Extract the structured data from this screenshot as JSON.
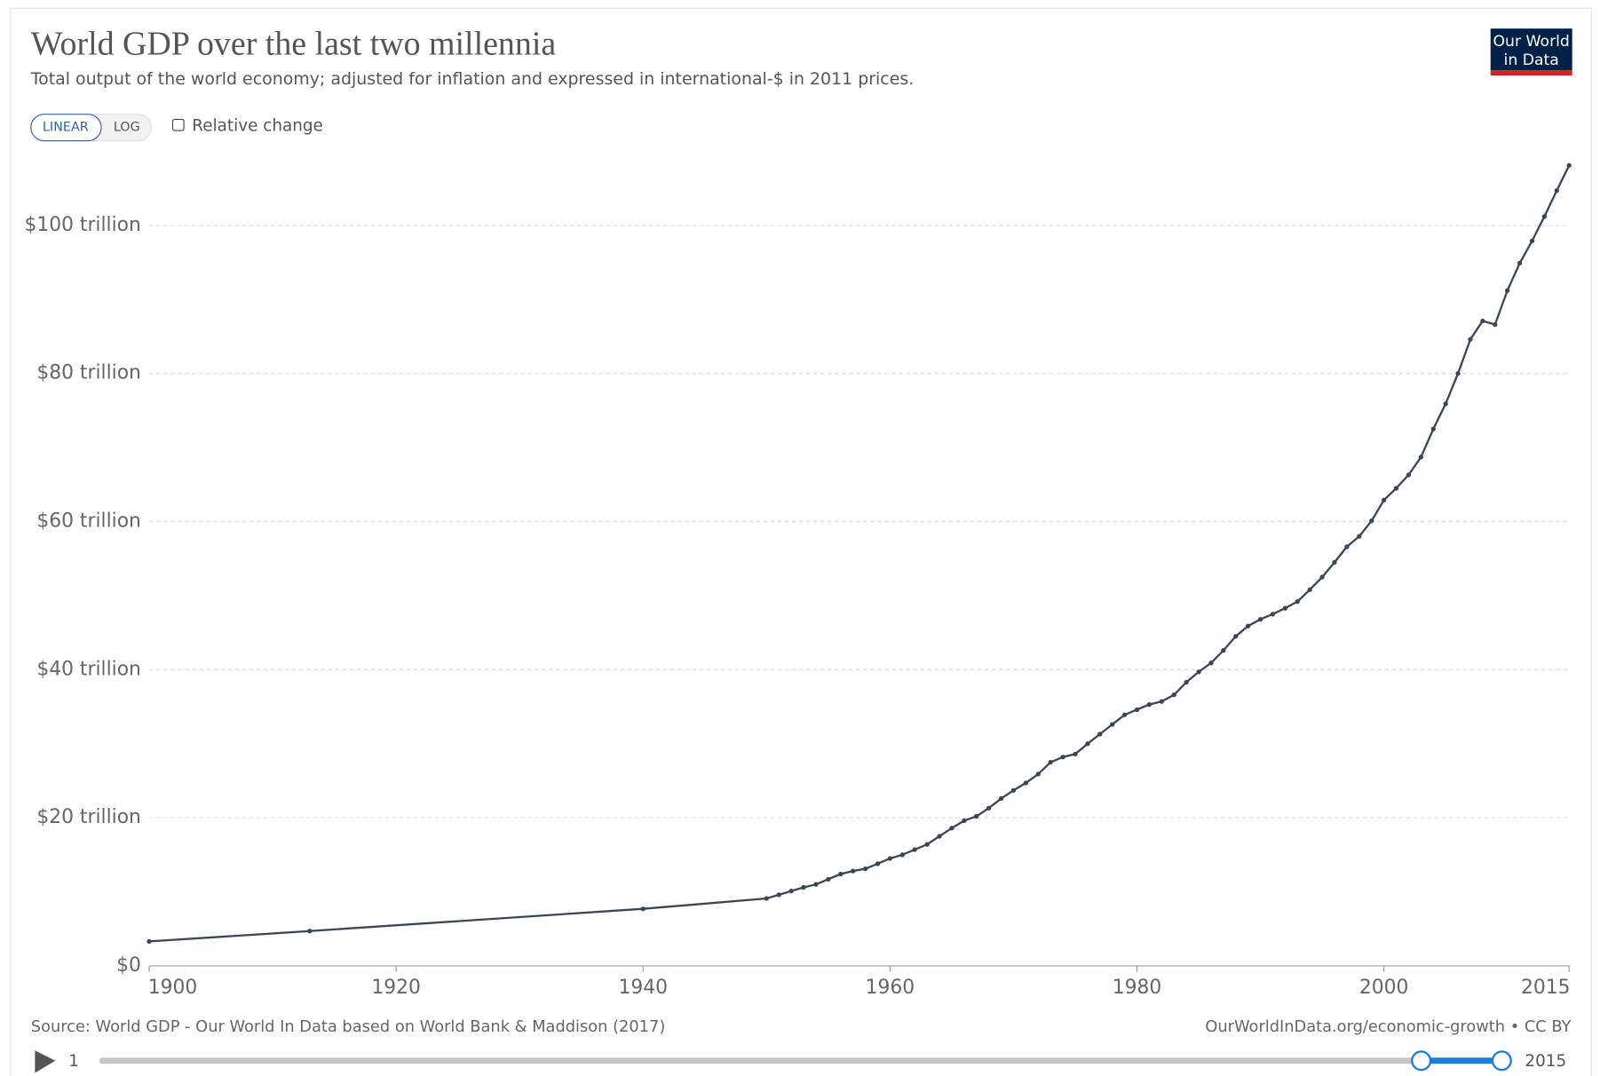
{
  "chart_data": {
    "type": "line",
    "title": "World GDP over the last two millennia",
    "subtitle": "Total output of the world economy; adjusted for inflation and expressed in international-$ in 2011 prices.",
    "source": "Source: World GDP - Our World In Data based on World Bank & Maddison (2017)",
    "license": "OurWorldInData.org/economic-growth • CC BY",
    "color": "#3a4556",
    "x": [
      1900,
      1913,
      1940,
      1950,
      1951,
      1952,
      1953,
      1954,
      1955,
      1956,
      1957,
      1958,
      1959,
      1960,
      1961,
      1962,
      1963,
      1964,
      1965,
      1966,
      1967,
      1968,
      1969,
      1970,
      1971,
      1972,
      1973,
      1974,
      1975,
      1976,
      1977,
      1978,
      1979,
      1980,
      1981,
      1982,
      1983,
      1984,
      1985,
      1986,
      1987,
      1988,
      1989,
      1990,
      1991,
      1992,
      1993,
      1994,
      1995,
      1996,
      1997,
      1998,
      1999,
      2000,
      2001,
      2002,
      2003,
      2004,
      2005,
      2006,
      2007,
      2008,
      2009,
      2010,
      2011,
      2012,
      2013,
      2014,
      2015
    ],
    "values": [
      3.3,
      4.7,
      7.7,
      9.1,
      9.6,
      10.1,
      10.6,
      11.0,
      11.7,
      12.4,
      12.8,
      13.1,
      13.8,
      14.5,
      15.0,
      15.7,
      16.4,
      17.5,
      18.6,
      19.6,
      20.2,
      21.3,
      22.6,
      23.7,
      24.7,
      25.9,
      27.5,
      28.2,
      28.6,
      30.0,
      31.3,
      32.6,
      33.9,
      34.6,
      35.3,
      35.7,
      36.6,
      38.3,
      39.7,
      40.9,
      42.6,
      44.5,
      45.9,
      46.8,
      47.5,
      48.3,
      49.2,
      50.8,
      52.5,
      54.5,
      56.6,
      58.0,
      60.1,
      62.9,
      64.5,
      66.3,
      68.7,
      72.5,
      75.9,
      80.0,
      84.6,
      87.1,
      86.6,
      91.2,
      94.9,
      97.9,
      101.2,
      104.7,
      108.1
    ],
    "xlim": [
      1900,
      2015
    ],
    "xticks": [
      1900,
      1920,
      1940,
      1960,
      1980,
      2000,
      2015
    ],
    "ylim": [
      0,
      108.4
    ],
    "yticks": [
      {
        "value": 0,
        "label": "$0"
      },
      {
        "value": 20,
        "label": "$20 trillion"
      },
      {
        "value": 40,
        "label": "$40 trillion"
      },
      {
        "value": 60,
        "label": "$60 trillion"
      },
      {
        "value": 80,
        "label": "$80 trillion"
      },
      {
        "value": 100,
        "label": "$100 trillion"
      }
    ],
    "grid": true
  },
  "ui": {
    "scale_buttons": [
      "LINEAR",
      "LOG"
    ],
    "checkbox": "Relative change",
    "logo": [
      "Our World",
      "in Data"
    ],
    "timeline_start": "1",
    "timeline_end": "2015"
  }
}
